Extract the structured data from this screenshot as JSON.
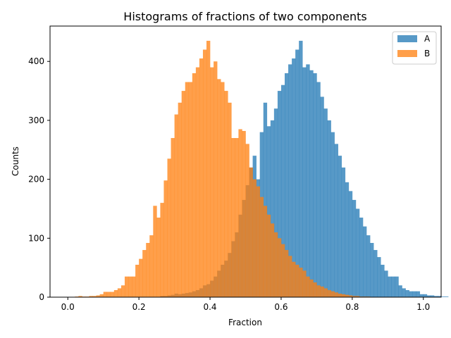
{
  "chart_data": {
    "type": "bar",
    "subtype": "histogram",
    "title": "Histograms of fractions of two components",
    "xlabel": "Fraction",
    "ylabel": "Counts",
    "xlim": [
      -0.05,
      1.05
    ],
    "ylim": [
      0,
      460
    ],
    "xticks": [
      0.0,
      0.2,
      0.4,
      0.6,
      0.8,
      1.0
    ],
    "xtick_labels": [
      "0.0",
      "0.2",
      "0.4",
      "0.6",
      "0.8",
      "1.0"
    ],
    "yticks": [
      0,
      100,
      200,
      300,
      400
    ],
    "ytick_labels": [
      "0",
      "100",
      "200",
      "300",
      "400"
    ],
    "grid": false,
    "legend_position": "top-right",
    "bin_start": 0.0,
    "bin_width": 0.01,
    "series": [
      {
        "name": "A",
        "color": "#1f77b4",
        "opacity": 0.75,
        "values": [
          0,
          0,
          0,
          0,
          0,
          0,
          0,
          0,
          0,
          0,
          0,
          0,
          0,
          0,
          0,
          0,
          0,
          0,
          0,
          0,
          0,
          0,
          0,
          0,
          0,
          0,
          2,
          2,
          3,
          4,
          6,
          5,
          6,
          7,
          8,
          10,
          12,
          15,
          20,
          22,
          28,
          35,
          45,
          55,
          62,
          75,
          95,
          110,
          140,
          165,
          190,
          220,
          240,
          200,
          280,
          330,
          290,
          300,
          320,
          350,
          360,
          380,
          395,
          405,
          420,
          435,
          390,
          395,
          385,
          380,
          365,
          340,
          320,
          300,
          280,
          260,
          240,
          220,
          195,
          180,
          165,
          150,
          135,
          120,
          105,
          92,
          80,
          68,
          55,
          45,
          35,
          35,
          35,
          20,
          15,
          12,
          10,
          10,
          10,
          5,
          5,
          3,
          3,
          2,
          2,
          1,
          1,
          0,
          0,
          0
        ]
      },
      {
        "name": "B",
        "color": "#ff7f0e",
        "opacity": 0.75,
        "values": [
          0,
          0,
          1,
          2,
          1,
          1,
          2,
          2,
          3,
          5,
          9,
          9,
          9,
          12,
          15,
          20,
          35,
          35,
          35,
          55,
          65,
          80,
          92,
          105,
          155,
          135,
          160,
          198,
          235,
          270,
          310,
          330,
          350,
          365,
          365,
          380,
          390,
          405,
          420,
          435,
          390,
          400,
          370,
          365,
          350,
          330,
          270,
          270,
          285,
          282,
          260,
          220,
          200,
          188,
          170,
          155,
          140,
          125,
          110,
          100,
          90,
          80,
          70,
          60,
          55,
          50,
          45,
          35,
          30,
          25,
          20,
          18,
          15,
          12,
          10,
          8,
          6,
          5,
          4,
          3,
          2,
          2,
          1,
          1,
          1,
          0,
          0,
          0,
          0,
          0,
          0,
          0,
          0,
          0,
          0,
          0,
          0,
          0,
          0,
          0,
          0,
          0,
          0,
          0,
          0,
          0,
          0,
          0,
          0,
          0
        ]
      }
    ]
  }
}
